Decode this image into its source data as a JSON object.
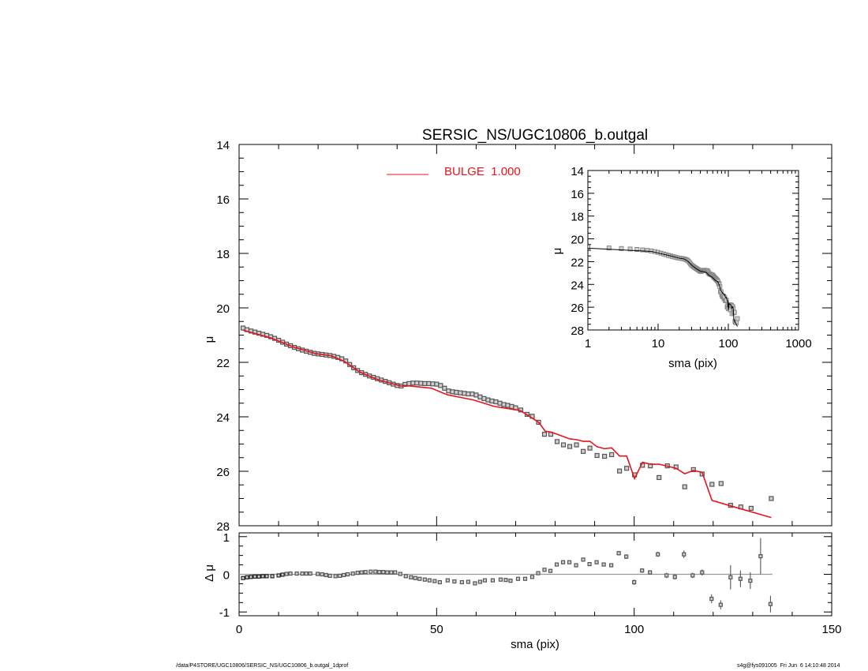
{
  "chart_data": [
    {
      "type": "scatter",
      "panel": "main",
      "title": "SERSIC_NS/UGC10806_b.outgal",
      "xlabel": "sma (pix)",
      "ylabel": "μ",
      "xlim": [
        0,
        150
      ],
      "ylim": [
        28,
        14
      ],
      "y_inverted": true,
      "xticks": [
        "0",
        "50",
        "100",
        "150"
      ],
      "yticks": [
        "14",
        "16",
        "18",
        "20",
        "22",
        "24",
        "26",
        "28"
      ],
      "legend": {
        "placement": "top-center",
        "entries": [
          {
            "label": "BULGE  1.000",
            "color": "#e8141c"
          }
        ]
      },
      "data_points": [
        [
          1,
          20.74
        ],
        [
          2,
          20.8
        ],
        [
          3,
          20.85
        ],
        [
          4,
          20.89
        ],
        [
          5,
          20.93
        ],
        [
          6,
          20.97
        ],
        [
          7,
          21.01
        ],
        [
          8,
          21.06
        ],
        [
          9,
          21.12
        ],
        [
          10,
          21.19
        ],
        [
          11,
          21.26
        ],
        [
          12,
          21.33
        ],
        [
          13,
          21.39
        ],
        [
          14,
          21.45
        ],
        [
          15,
          21.5
        ],
        [
          16,
          21.55
        ],
        [
          17,
          21.59
        ],
        [
          18,
          21.63
        ],
        [
          19,
          21.67
        ],
        [
          20,
          21.69
        ],
        [
          21,
          21.71
        ],
        [
          22,
          21.73
        ],
        [
          23,
          21.75
        ],
        [
          24,
          21.78
        ],
        [
          25,
          21.82
        ],
        [
          26,
          21.87
        ],
        [
          27,
          21.95
        ],
        [
          28,
          22.08
        ],
        [
          29,
          22.2
        ],
        [
          30,
          22.3
        ],
        [
          31,
          22.38
        ],
        [
          32,
          22.44
        ],
        [
          33,
          22.5
        ],
        [
          34,
          22.55
        ],
        [
          35,
          22.6
        ],
        [
          36,
          22.65
        ],
        [
          37,
          22.7
        ],
        [
          38,
          22.75
        ],
        [
          39,
          22.8
        ],
        [
          40,
          22.85
        ],
        [
          41,
          22.87
        ],
        [
          42,
          22.81
        ],
        [
          43,
          22.78
        ],
        [
          44,
          22.76
        ],
        [
          45,
          22.76
        ],
        [
          46,
          22.77
        ],
        [
          47,
          22.78
        ],
        [
          48,
          22.78
        ],
        [
          49,
          22.79
        ],
        [
          50,
          22.8
        ],
        [
          51,
          22.85
        ],
        [
          52,
          22.95
        ],
        [
          53,
          23.05
        ],
        [
          54,
          23.08
        ],
        [
          55,
          23.1
        ],
        [
          56,
          23.12
        ],
        [
          57,
          23.14
        ],
        [
          58,
          23.16
        ],
        [
          59,
          23.16
        ],
        [
          60,
          23.2
        ],
        [
          61,
          23.27
        ],
        [
          62,
          23.33
        ],
        [
          63,
          23.38
        ],
        [
          64,
          23.42
        ],
        [
          65,
          23.45
        ],
        [
          66,
          23.5
        ],
        [
          67,
          23.55
        ],
        [
          68,
          23.58
        ],
        [
          69,
          23.62
        ],
        [
          70,
          23.67
        ],
        [
          71.3,
          23.75
        ],
        [
          72.9,
          23.91
        ],
        [
          74.2,
          23.98
        ],
        [
          75.8,
          24.2
        ],
        [
          77.3,
          24.64
        ],
        [
          78.9,
          24.64
        ],
        [
          80.5,
          24.91
        ],
        [
          82.1,
          25.03
        ],
        [
          83.7,
          25.09
        ],
        [
          85.4,
          25.03
        ],
        [
          87.1,
          25.27
        ],
        [
          88.8,
          25.15
        ],
        [
          90.6,
          25.42
        ],
        [
          92.5,
          25.45
        ],
        [
          94.3,
          25.39
        ],
        [
          96.3,
          25.99
        ],
        [
          98.1,
          25.89
        ],
        [
          100.1,
          26.13
        ],
        [
          102.1,
          25.78
        ],
        [
          104.1,
          25.8
        ],
        [
          106.3,
          26.23
        ],
        [
          108.4,
          25.8
        ],
        [
          110.6,
          25.84
        ],
        [
          112.8,
          26.57
        ],
        [
          115,
          25.94
        ],
        [
          117.2,
          26.1
        ],
        [
          119.7,
          26.48
        ],
        [
          122,
          26.45
        ],
        [
          124.4,
          27.25
        ],
        [
          127,
          27.31
        ],
        [
          129.6,
          27.36
        ],
        [
          134.7,
          27.0
        ]
      ],
      "model": {
        "name": "BULGE  1.000",
        "color": "#e8141c",
        "points": [
          [
            1,
            20.82
          ],
          [
            8,
            21.1
          ],
          [
            14,
            21.45
          ],
          [
            19.4,
            21.68
          ],
          [
            23.4,
            21.76
          ],
          [
            26.7,
            21.97
          ],
          [
            30.7,
            22.37
          ],
          [
            35.4,
            22.65
          ],
          [
            41,
            22.87
          ],
          [
            42,
            22.85
          ],
          [
            48.7,
            22.95
          ],
          [
            52.7,
            23.19
          ],
          [
            59.3,
            23.38
          ],
          [
            64.6,
            23.62
          ],
          [
            70,
            23.74
          ],
          [
            71.3,
            23.78
          ],
          [
            74.2,
            24.05
          ],
          [
            75.8,
            24.2
          ],
          [
            77.5,
            24.53
          ],
          [
            78.9,
            24.56
          ],
          [
            80.5,
            24.64
          ],
          [
            83.7,
            24.81
          ],
          [
            85.5,
            24.84
          ],
          [
            87.1,
            24.9
          ],
          [
            88.8,
            24.9
          ],
          [
            90.6,
            25.1
          ],
          [
            92.5,
            25.17
          ],
          [
            94.3,
            25.14
          ],
          [
            96.3,
            25.44
          ],
          [
            98.1,
            25.44
          ],
          [
            100.1,
            26.27
          ],
          [
            102.1,
            25.67
          ],
          [
            104.1,
            25.74
          ],
          [
            106.3,
            25.74
          ],
          [
            110.6,
            25.89
          ],
          [
            112.8,
            26.09
          ],
          [
            115,
            25.97
          ],
          [
            117.2,
            26.04
          ],
          [
            119.7,
            27.07
          ],
          [
            124.4,
            27.27
          ],
          [
            134.7,
            27.7
          ]
        ]
      },
      "grid": false
    },
    {
      "type": "scatter",
      "panel": "residual",
      "xlabel": "sma (pix)",
      "ylabel": "Δ μ",
      "xlim": [
        0,
        150
      ],
      "ylim": [
        -1.1,
        1.1
      ],
      "yticks": [
        "1",
        "0",
        "-1"
      ],
      "zero_line": 0,
      "points": [
        [
          1,
          -0.1,
          0
        ],
        [
          2,
          -0.08,
          0
        ],
        [
          3,
          -0.07,
          0
        ],
        [
          4,
          -0.06,
          0
        ],
        [
          5,
          -0.06,
          0
        ],
        [
          6,
          -0.05,
          0
        ],
        [
          7,
          -0.05,
          0
        ],
        [
          8.4,
          -0.05,
          0
        ],
        [
          10,
          -0.03,
          0
        ],
        [
          11,
          -0.01,
          0
        ],
        [
          12,
          0.01,
          0
        ],
        [
          13,
          0.02,
          0
        ],
        [
          14.6,
          0.02,
          0
        ],
        [
          16,
          0.02,
          0
        ],
        [
          17,
          0.02,
          0
        ],
        [
          18,
          0.02,
          0
        ],
        [
          19.9,
          0.01,
          0
        ],
        [
          21,
          0,
          0
        ],
        [
          22,
          -0.02,
          0
        ],
        [
          23,
          -0.04,
          0
        ],
        [
          24.4,
          -0.05,
          0
        ],
        [
          25.5,
          -0.04,
          0
        ],
        [
          26.5,
          -0.02,
          0
        ],
        [
          27.5,
          0,
          0
        ],
        [
          28.8,
          0.02,
          0
        ],
        [
          30,
          0.04,
          0
        ],
        [
          31,
          0.05,
          0
        ],
        [
          32,
          0.06,
          0
        ],
        [
          33.3,
          0.07,
          0
        ],
        [
          34.5,
          0.07,
          0
        ],
        [
          35.5,
          0.06,
          0
        ],
        [
          36.5,
          0.06,
          0
        ],
        [
          37.5,
          0.05,
          0
        ],
        [
          38.5,
          0.05,
          0
        ],
        [
          39.5,
          0.05,
          0
        ],
        [
          40.8,
          0.01,
          0
        ],
        [
          42.2,
          -0.05,
          0
        ],
        [
          43.5,
          -0.08,
          0
        ],
        [
          44.6,
          -0.1,
          0
        ],
        [
          45.7,
          -0.12,
          0
        ],
        [
          47,
          -0.14,
          0
        ],
        [
          48.2,
          -0.16,
          0
        ],
        [
          49.5,
          -0.18,
          0
        ],
        [
          50.8,
          -0.21,
          0
        ],
        [
          52.8,
          -0.16,
          0
        ],
        [
          54.5,
          -0.19,
          0
        ],
        [
          56.4,
          -0.21,
          0
        ],
        [
          58,
          -0.2,
          0
        ],
        [
          59.7,
          -0.24,
          0
        ],
        [
          61,
          -0.2,
          0
        ],
        [
          62.2,
          -0.16,
          0
        ],
        [
          64.2,
          -0.16,
          0
        ],
        [
          66.2,
          -0.14,
          0
        ],
        [
          67.5,
          -0.15,
          0
        ],
        [
          68.7,
          -0.17,
          0
        ],
        [
          70.6,
          -0.12,
          0
        ],
        [
          72.4,
          -0.12,
          0
        ],
        [
          74.2,
          -0.07,
          0
        ],
        [
          75.7,
          0.03,
          0
        ],
        [
          77.3,
          0.12,
          0
        ],
        [
          78.8,
          0.09,
          0
        ],
        [
          80.4,
          0.26,
          0
        ],
        [
          82,
          0.32,
          0
        ],
        [
          83.6,
          0.32,
          0
        ],
        [
          85.3,
          0.24,
          0
        ],
        [
          87.1,
          0.39,
          0
        ],
        [
          88.7,
          0.27,
          0
        ],
        [
          90.5,
          0.32,
          0
        ],
        [
          92.3,
          0.26,
          0
        ],
        [
          94.2,
          0.24,
          0
        ],
        [
          96.1,
          0.56,
          0.06
        ],
        [
          98,
          0.47,
          0.06
        ],
        [
          100,
          -0.21,
          0.07
        ],
        [
          102,
          0.1,
          0.06
        ],
        [
          104,
          0.05,
          0.06
        ],
        [
          106,
          0.53,
          0.07
        ],
        [
          108.2,
          -0.03,
          0.07
        ],
        [
          110.3,
          -0.07,
          0.07
        ],
        [
          112.6,
          0.53,
          0.1
        ],
        [
          114.8,
          -0.03,
          0.07
        ],
        [
          117.2,
          0.05,
          0.08
        ],
        [
          119.6,
          -0.65,
          0.12
        ],
        [
          121.9,
          -0.81,
          0.12
        ],
        [
          124.4,
          -0.08,
          0.32
        ],
        [
          126.9,
          -0.12,
          0.22
        ],
        [
          129.4,
          -0.17,
          0.22
        ],
        [
          132,
          0.48,
          0.48
        ],
        [
          134.5,
          -0.79,
          0.22
        ]
      ]
    },
    {
      "type": "scatter",
      "panel": "inset",
      "xlabel": "sma (pix)",
      "ylabel": "μ",
      "xscale": "log",
      "xlim": [
        1,
        1000
      ],
      "ylim": [
        28,
        14
      ],
      "xticks": [
        "1",
        "10",
        "100",
        "1000"
      ],
      "yticks": [
        "14",
        "16",
        "18",
        "20",
        "22",
        "24",
        "26",
        "28"
      ],
      "series_source": "same data and model as main panel",
      "model_color": "#000000"
    }
  ],
  "footer": {
    "left": "/data/P4STORE/UGC10806/SERSIC_NS/UGC10806_b.outgal_1dprof",
    "right": "s4g@fys091005  Fri Jun  6 14:10:48 2014"
  },
  "colors": {
    "model": "#e8141c",
    "data_edge": "#555555",
    "data_fill": "#cfcfcf",
    "zero_line": "#9a9a9a"
  }
}
